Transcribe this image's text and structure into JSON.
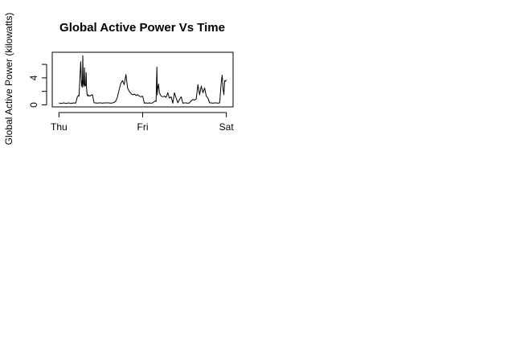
{
  "chart_data": {
    "type": "line",
    "title": "Global Active Power Vs Time",
    "xlabel": "",
    "ylabel": "Global Active Power (kilowatts)",
    "x_ticks": [
      {
        "label": "Thu",
        "value": 0
      },
      {
        "label": "Fri",
        "value": 1
      },
      {
        "label": "Sat",
        "value": 2
      }
    ],
    "xlim": [
      -0.08,
      2.08
    ],
    "ylim": [
      -0.3,
      7.8
    ],
    "y_ticks": [
      0,
      2,
      4,
      6
    ],
    "y_tick_labels": [
      "0",
      "",
      "4",
      ""
    ],
    "grid": false,
    "legend": "none",
    "line_color": "#000000",
    "series": [
      {
        "x": [
          0.0,
          0.02,
          0.04,
          0.06,
          0.08,
          0.1,
          0.12,
          0.14,
          0.16,
          0.18,
          0.2,
          0.22,
          0.235,
          0.24,
          0.26,
          0.27,
          0.275,
          0.28,
          0.285,
          0.29,
          0.3,
          0.305,
          0.31,
          0.32,
          0.325,
          0.33,
          0.335,
          0.34,
          0.345,
          0.35,
          0.36,
          0.37,
          0.38,
          0.4,
          0.42,
          0.44,
          0.46,
          0.48,
          0.5,
          0.52,
          0.54,
          0.56,
          0.58,
          0.6,
          0.62,
          0.64,
          0.66,
          0.68,
          0.7,
          0.72,
          0.74,
          0.76,
          0.78,
          0.8,
          0.82,
          0.84,
          0.86,
          0.88,
          0.9,
          0.92,
          0.94,
          0.96,
          0.98,
          1.0,
          1.02,
          1.04,
          1.06,
          1.08,
          1.1,
          1.12,
          1.14,
          1.155,
          1.16,
          1.17,
          1.175,
          1.18,
          1.19,
          1.2,
          1.22,
          1.24,
          1.26,
          1.28,
          1.3,
          1.32,
          1.34,
          1.36,
          1.38,
          1.4,
          1.42,
          1.44,
          1.46,
          1.48,
          1.5,
          1.52,
          1.54,
          1.56,
          1.58,
          1.6,
          1.62,
          1.64,
          1.66,
          1.68,
          1.7,
          1.72,
          1.74,
          1.76,
          1.78,
          1.8,
          1.82,
          1.84,
          1.86,
          1.88,
          1.9,
          1.92,
          1.94,
          1.95,
          1.96,
          1.97,
          1.98,
          1.99,
          2.0
        ],
        "y": [
          0.3,
          0.2,
          0.25,
          0.3,
          0.2,
          0.25,
          0.3,
          0.2,
          0.25,
          0.3,
          0.25,
          1.2,
          1.4,
          1.3,
          6.4,
          2.8,
          3.5,
          2.6,
          7.3,
          3.2,
          2.7,
          5.5,
          3.0,
          2.8,
          4.8,
          2.5,
          1.6,
          1.4,
          1.5,
          1.3,
          1.4,
          1.3,
          1.4,
          1.5,
          0.3,
          0.3,
          0.25,
          0.3,
          0.3,
          0.25,
          0.3,
          0.3,
          0.3,
          0.3,
          0.25,
          0.3,
          0.35,
          0.6,
          1.2,
          2.3,
          3.2,
          3.6,
          3.0,
          4.5,
          2.5,
          2.0,
          1.7,
          1.5,
          1.6,
          1.4,
          1.5,
          1.3,
          1.2,
          1.3,
          0.25,
          0.3,
          0.25,
          0.3,
          0.25,
          0.3,
          0.5,
          0.6,
          0.5,
          5.6,
          1.5,
          2.4,
          3.1,
          1.8,
          1.3,
          1.2,
          1.3,
          1.1,
          1.8,
          1.0,
          1.2,
          0.25,
          1.8,
          1.0,
          0.3,
          0.8,
          1.2,
          0.25,
          0.3,
          0.3,
          0.25,
          0.3,
          0.6,
          0.8,
          0.7,
          0.9,
          3.0,
          1.5,
          2.8,
          1.8,
          2.5,
          1.3,
          1.0,
          0.3,
          0.3,
          0.25,
          0.3,
          0.3,
          0.25,
          0.3,
          3.5,
          4.4,
          2.4,
          1.5,
          3.6,
          3.5,
          3.7
        ]
      }
    ]
  }
}
